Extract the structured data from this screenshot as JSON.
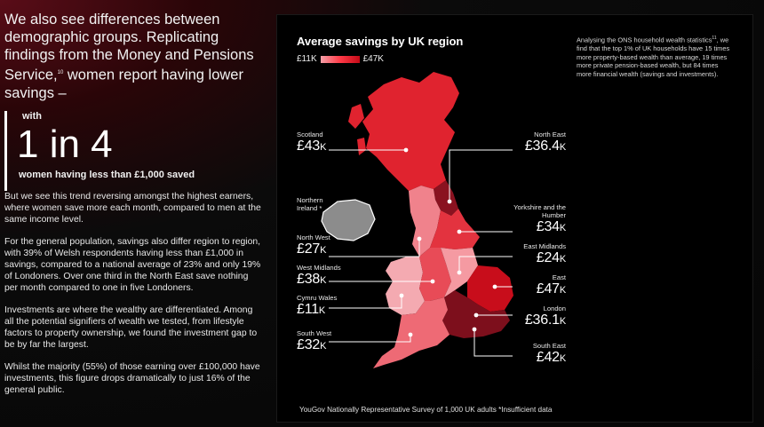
{
  "left": {
    "intro": "We also see differences between demographic groups. Replicating findings from the Money and Pensions Service,",
    "intro_sup": "10",
    "intro_end": " women report having lower savings –",
    "callout_with": "with",
    "callout_big": "1 in 4",
    "callout_sub": "women having less than £1,000 saved",
    "paragraphs": [
      "But we see this trend reversing amongst the highest earners, where women save more each month, compared to men at the same income level.",
      "For the general population, savings also differ region to region, with 39% of Welsh respondents having less than £1,000 in savings, compared to a national average of 23% and only 19% of Londoners. Over one third in the North East save nothing per month compared to one in five Londoners.",
      "Investments are where the wealthy are differentiated. Among all the potential signifiers of wealth we tested, from lifestyle factors to property ownership, we found the investment gap to be by far the largest.",
      "Whilst the majority (55%) of those earning over £100,000 have investments, this figure drops dramatically to just 16% of the general public."
    ]
  },
  "panel": {
    "title": "Average savings by UK region",
    "legend_min": "£11K",
    "legend_max": "£47K",
    "note_a": "Analysing the ONS household wealth statistics",
    "note_sup": "11",
    "note_b": ", we find that the top 1% of UK households have 15 times more property-based wealth than average, 19 times more private pension-based wealth, but 84 times more financial wealth (savings and investments).",
    "footer": "YouGov Nationally Representative Survey of 1,000 UK adults *Insufficient data"
  },
  "regions": {
    "scotland": {
      "name": "Scotland",
      "value": "£43",
      "unit": "K",
      "color": "#e0232f"
    },
    "northern_ireland": {
      "name": "Northern Ireland *",
      "color": "#8c8c8c"
    },
    "north_west": {
      "name": "North West",
      "value": "£27",
      "unit": "K",
      "color": "#f0828c"
    },
    "west_midlands": {
      "name": "West Midlands",
      "value": "£38",
      "unit": "K",
      "color": "#e84b57"
    },
    "wales": {
      "name": "Cymru Wales",
      "value": "£11",
      "unit": "K",
      "color": "#f4aab1"
    },
    "south_west": {
      "name": "South West",
      "value": "£32",
      "unit": "K",
      "color": "#ee6a75"
    },
    "north_east": {
      "name": "North East",
      "value": "£36.4",
      "unit": "K",
      "color": "#8a1220"
    },
    "yorkshire": {
      "name": "Yorkshire and the Humber",
      "value": "£34",
      "unit": "K",
      "color": "#e3333f"
    },
    "east_midlands": {
      "name": "East Midlands",
      "value": "£24",
      "unit": "K",
      "color": "#f59aa2"
    },
    "east": {
      "name": "East",
      "value": "£47",
      "unit": "K",
      "color": "#c80d1b"
    },
    "london": {
      "name": "London",
      "value": "£36.1",
      "unit": "K",
      "color": "#c41525"
    },
    "south_east": {
      "name": "South East",
      "value": "£42",
      "unit": "K",
      "color": "#7d0f1c"
    }
  }
}
